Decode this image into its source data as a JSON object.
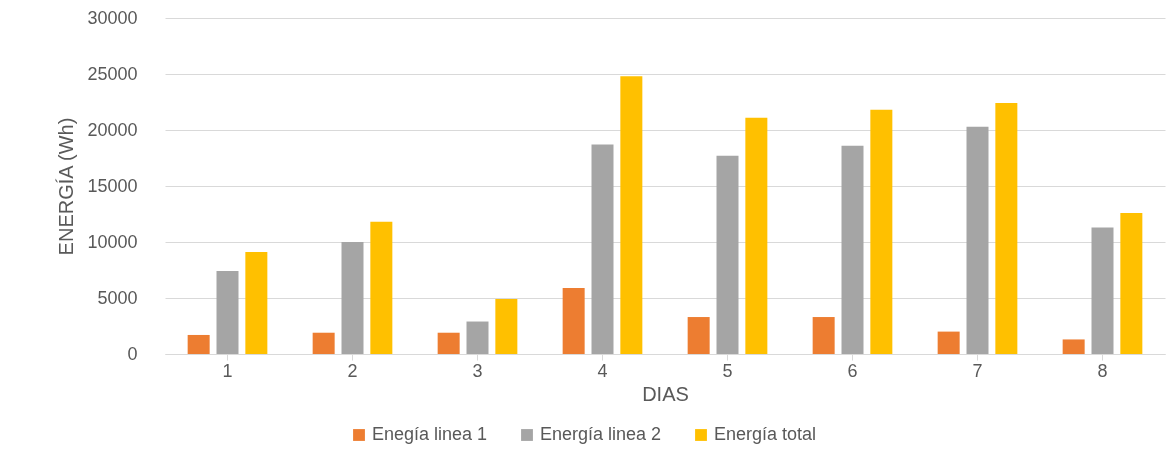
{
  "chart_data": {
    "type": "bar",
    "xlabel": "DIAS",
    "ylabel": "ENERGÍA (Wh)",
    "categories": [
      "1",
      "2",
      "3",
      "4",
      "5",
      "6",
      "7",
      "8"
    ],
    "series": [
      {
        "name": "Enegía linea 1",
        "color": "#ed7d31",
        "values": [
          1700,
          1900,
          1900,
          5900,
          3300,
          3300,
          2000,
          1300
        ]
      },
      {
        "name": "Energía linea 2",
        "color": "#a5a5a5",
        "values": [
          7400,
          10000,
          2900,
          18700,
          17700,
          18600,
          20300,
          11300
        ]
      },
      {
        "name": "Energía total",
        "color": "#ffc000",
        "values": [
          9100,
          11800,
          4900,
          24800,
          21100,
          21800,
          22400,
          12600
        ]
      }
    ],
    "ylim": [
      0,
      30000
    ],
    "yticks": [
      0,
      5000,
      10000,
      15000,
      20000,
      25000,
      30000
    ],
    "grid": "y",
    "legend": "bottom"
  }
}
